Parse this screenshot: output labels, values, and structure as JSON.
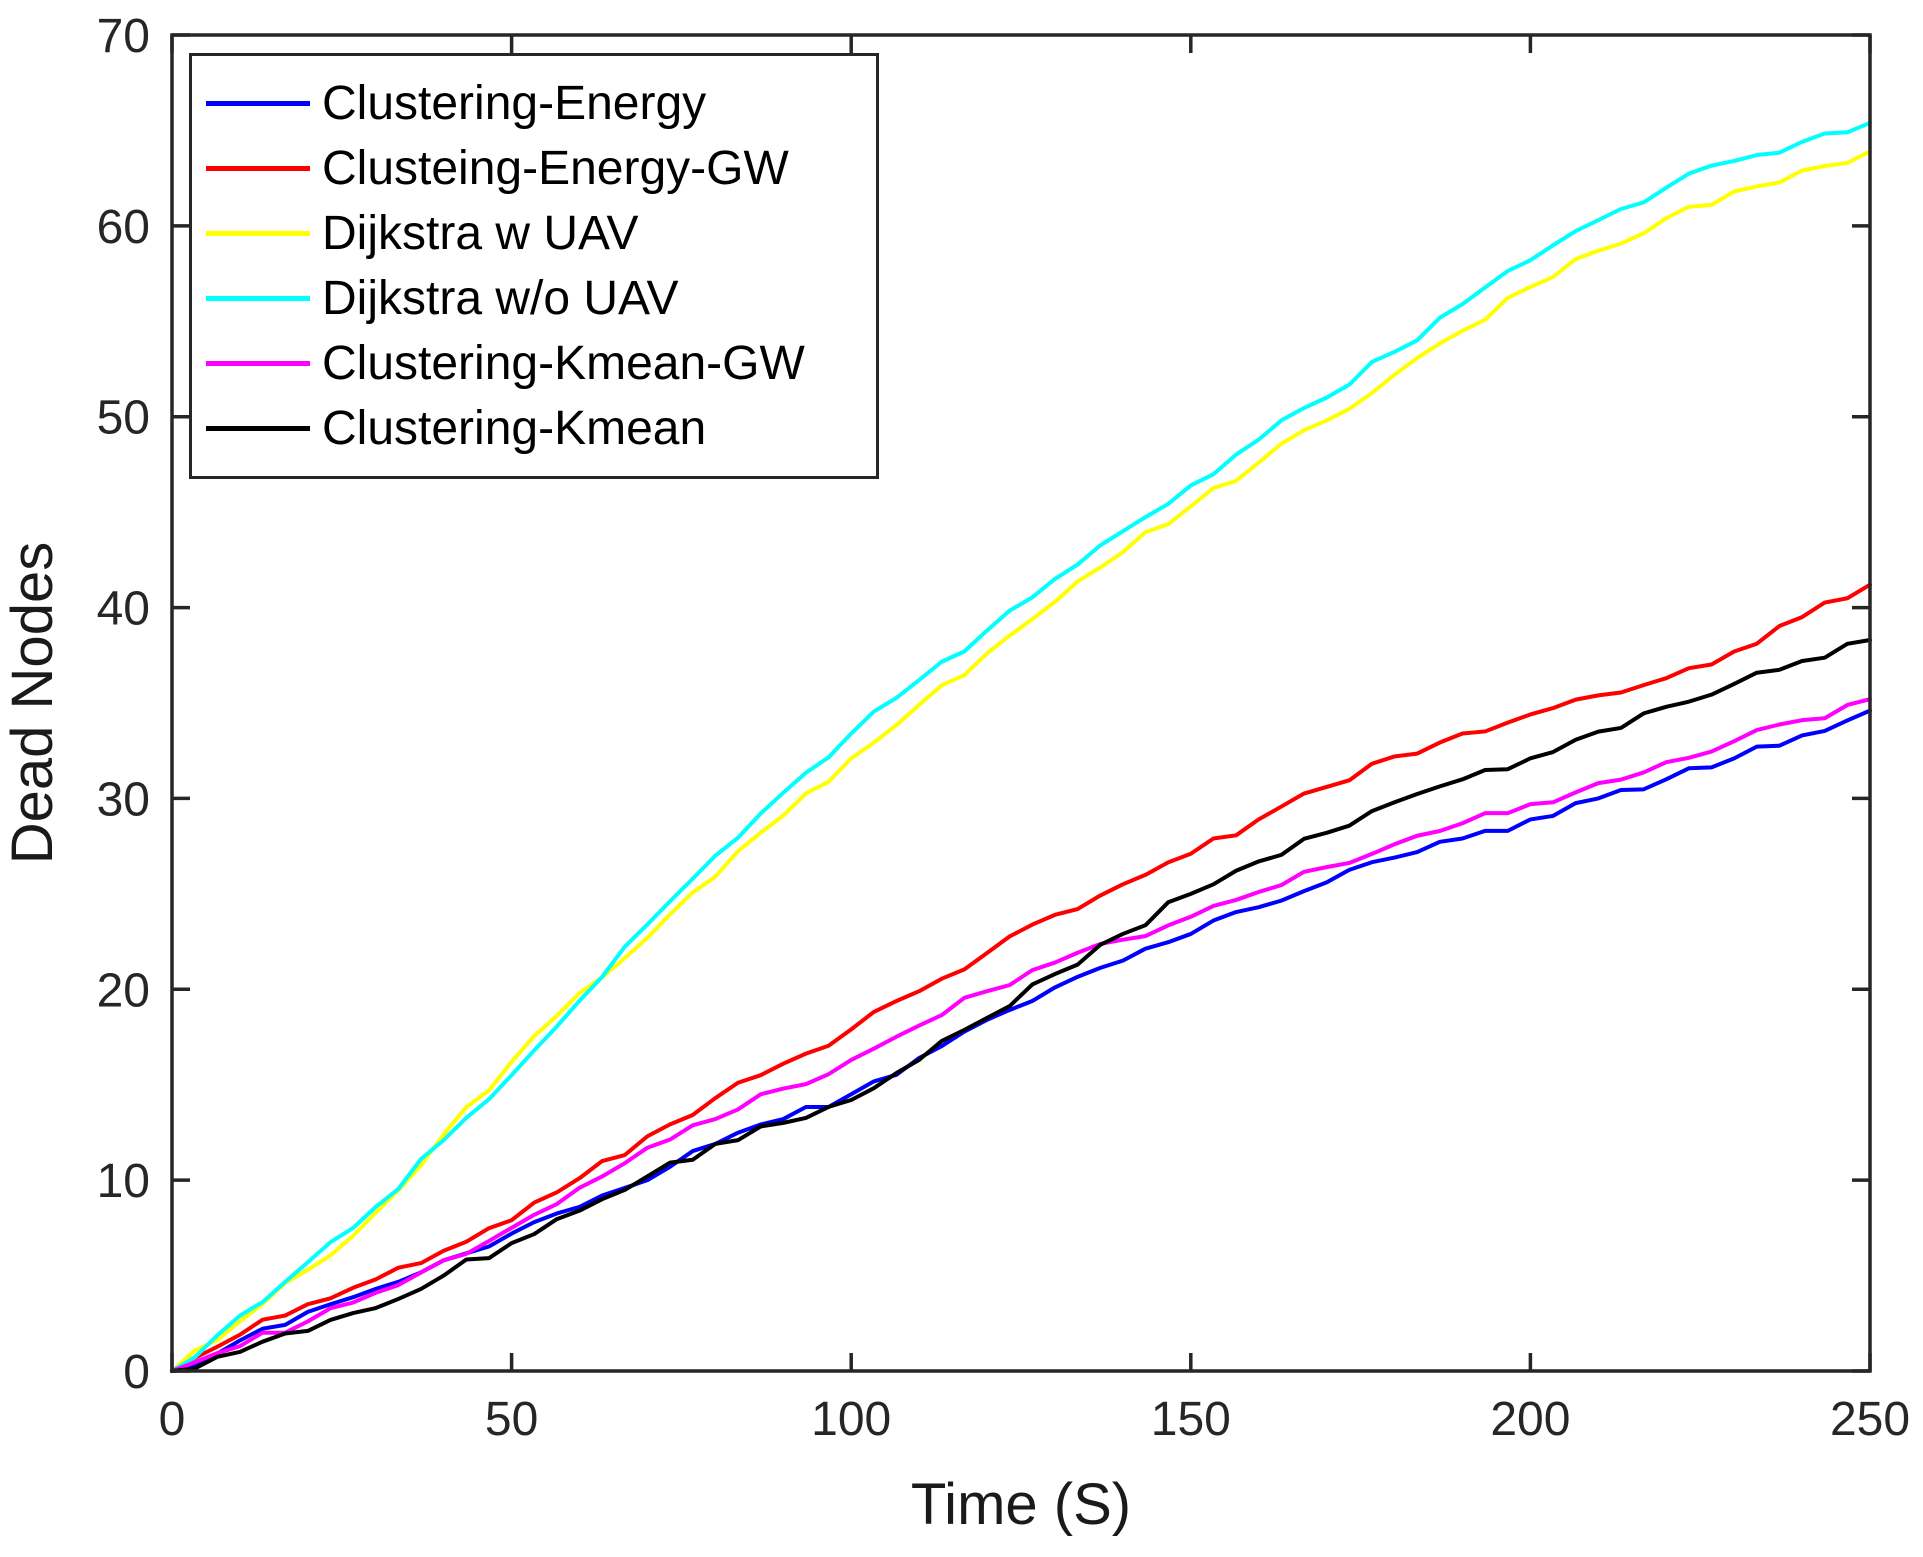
{
  "figure": {
    "background": "#ffffff",
    "axis_color": "#262626",
    "xlabel": "Time (S)",
    "ylabel": "Dead Nodes"
  },
  "legend": {
    "position": "top-left",
    "entries": [
      {
        "label": "Clustering-Energy",
        "color": "#0000ff"
      },
      {
        "label": "Clusteing-Energy-GW",
        "color": "#ff0000"
      },
      {
        "label": "Dijkstra w UAV",
        "color": "#ffff00"
      },
      {
        "label": "Dijkstra w/o UAV",
        "color": "#00ffff"
      },
      {
        "label": "Clustering-Kmean-GW",
        "color": "#ff00ff"
      },
      {
        "label": "Clustering-Kmean",
        "color": "#000000"
      }
    ]
  },
  "chart_data": {
    "type": "line",
    "title": "",
    "xlabel": "Time (S)",
    "ylabel": "Dead Nodes",
    "xlim": [
      0,
      250
    ],
    "ylim": [
      0,
      70
    ],
    "x_ticks": [
      0,
      50,
      100,
      150,
      200,
      250
    ],
    "y_ticks": [
      0,
      10,
      20,
      30,
      40,
      50,
      60,
      70
    ],
    "grid": false,
    "legend_position": "top-left",
    "x": [
      0,
      10,
      20,
      30,
      40,
      50,
      60,
      70,
      80,
      90,
      100,
      110,
      120,
      130,
      140,
      150,
      160,
      170,
      180,
      190,
      200,
      210,
      220,
      230,
      240,
      250
    ],
    "series": [
      {
        "name": "Clustering-Energy",
        "color": "#0000ff",
        "values": [
          0,
          1.6,
          3.1,
          4.3,
          5.8,
          7.2,
          8.6,
          10.0,
          11.9,
          13.2,
          14.5,
          16.4,
          18.4,
          20.1,
          21.5,
          22.9,
          24.3,
          25.6,
          26.9,
          27.9,
          28.9,
          30.0,
          31.0,
          32.1,
          33.3,
          34.6
        ]
      },
      {
        "name": "Clusteing-Energy-GW",
        "color": "#ff0000",
        "values": [
          0,
          1.9,
          3.5,
          4.8,
          6.3,
          7.9,
          10.1,
          12.3,
          14.3,
          16.1,
          17.9,
          19.9,
          21.9,
          23.9,
          25.5,
          27.1,
          28.9,
          30.6,
          32.2,
          33.4,
          34.4,
          35.4,
          36.3,
          37.7,
          39.5,
          41.2
        ]
      },
      {
        "name": "Dijkstra w UAV",
        "color": "#ffff00",
        "values": [
          0,
          2.6,
          5.3,
          8.3,
          12.4,
          16.2,
          19.8,
          22.7,
          25.9,
          29.1,
          32.1,
          34.9,
          37.6,
          40.3,
          42.9,
          45.3,
          47.6,
          49.8,
          52.2,
          54.5,
          56.8,
          58.7,
          60.4,
          61.8,
          62.9,
          63.9
        ]
      },
      {
        "name": "Dijkstra w/o UAV",
        "color": "#00ffff",
        "values": [
          0,
          2.9,
          5.7,
          8.6,
          12.1,
          15.5,
          19.4,
          23.4,
          27.0,
          30.3,
          33.4,
          36.2,
          38.8,
          41.5,
          44.0,
          46.4,
          48.8,
          51.0,
          53.4,
          55.9,
          58.2,
          60.3,
          62.0,
          63.4,
          64.4,
          65.4
        ]
      },
      {
        "name": "Clustering-Kmean-GW",
        "color": "#ff00ff",
        "values": [
          0,
          1.3,
          2.6,
          4.1,
          5.8,
          7.5,
          9.6,
          11.7,
          13.2,
          14.8,
          16.3,
          18.1,
          19.9,
          21.4,
          22.6,
          23.8,
          25.1,
          26.4,
          27.6,
          28.7,
          29.7,
          30.8,
          31.9,
          33.0,
          34.1,
          35.2
        ]
      },
      {
        "name": "Clustering-Kmean",
        "color": "#000000",
        "values": [
          0,
          1.0,
          2.1,
          3.3,
          5.0,
          6.7,
          8.4,
          10.2,
          11.9,
          13.0,
          14.2,
          16.3,
          18.5,
          20.8,
          22.9,
          25.0,
          26.7,
          28.2,
          29.8,
          31.0,
          32.1,
          33.5,
          34.8,
          36.0,
          37.2,
          38.3
        ]
      }
    ]
  }
}
